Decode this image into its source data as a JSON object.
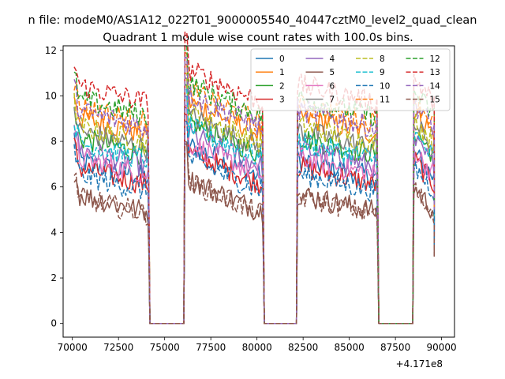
{
  "suptitle": "n file: modeM0/AS1A12_022T01_9000005540_40447cztM0_level2_quad_clean",
  "chart_data": {
    "type": "line",
    "title": "Quadrant 1 module wise count rates with 100.0s bins.",
    "xlabel": "",
    "ylabel": "",
    "x_offset_label": "+4.171e8",
    "xlim": [
      69500,
      90700
    ],
    "ylim": [
      -0.6,
      12.2
    ],
    "xticks": [
      70000,
      72500,
      75000,
      77500,
      80000,
      82500,
      85000,
      87500,
      90000
    ],
    "xtick_labels": [
      "70000",
      "72500",
      "75000",
      "77500",
      "80000",
      "82500",
      "85000",
      "87500",
      "90000"
    ],
    "yticks": [
      0,
      2,
      4,
      6,
      8,
      10,
      12
    ],
    "ytick_labels": [
      "0",
      "2",
      "4",
      "6",
      "8",
      "10",
      "12"
    ],
    "grid": false,
    "legend_placement": "upper-right, 4 columns",
    "gaps": [
      [
        74200,
        76100
      ],
      [
        80400,
        82200
      ],
      [
        86600,
        88500
      ]
    ],
    "segments": [
      [
        70100,
        74100
      ],
      [
        76100,
        80300
      ],
      [
        82200,
        86500
      ],
      [
        88500,
        89600
      ]
    ],
    "bin_seconds": 100,
    "series": [
      {
        "name": "0",
        "color": "#1f77b4",
        "dash": "solid",
        "level": 6.9
      },
      {
        "name": "1",
        "color": "#ff7f0e",
        "dash": "solid",
        "level": 8.8
      },
      {
        "name": "2",
        "color": "#2ca02c",
        "dash": "solid",
        "level": 7.9
      },
      {
        "name": "3",
        "color": "#d62728",
        "dash": "solid",
        "level": 6.6
      },
      {
        "name": "4",
        "color": "#9467bd",
        "dash": "solid",
        "level": 7.4
      },
      {
        "name": "5",
        "color": "#8c564b",
        "dash": "solid",
        "level": 5.4
      },
      {
        "name": "6",
        "color": "#e377c2",
        "dash": "solid",
        "level": 7.0
      },
      {
        "name": "7",
        "color": "#7f7f7f",
        "dash": "solid",
        "level": 8.2
      },
      {
        "name": "8",
        "color": "#bcbd22",
        "dash": "dashed",
        "level": 8.4
      },
      {
        "name": "9",
        "color": "#17becf",
        "dash": "dashed",
        "level": 7.7
      },
      {
        "name": "10",
        "color": "#1f77b4",
        "dash": "dashed",
        "level": 6.3
      },
      {
        "name": "11",
        "color": "#ff7f0e",
        "dash": "dashed",
        "level": 9.3
      },
      {
        "name": "12",
        "color": "#2ca02c",
        "dash": "dashed",
        "level": 9.6
      },
      {
        "name": "13",
        "color": "#d62728",
        "dash": "dashed",
        "level": 10.2
      },
      {
        "name": "14",
        "color": "#9467bd",
        "dash": "dashed",
        "level": 9.1
      },
      {
        "name": "15",
        "color": "#8c564b",
        "dash": "dashed",
        "level": 5.3
      }
    ]
  }
}
